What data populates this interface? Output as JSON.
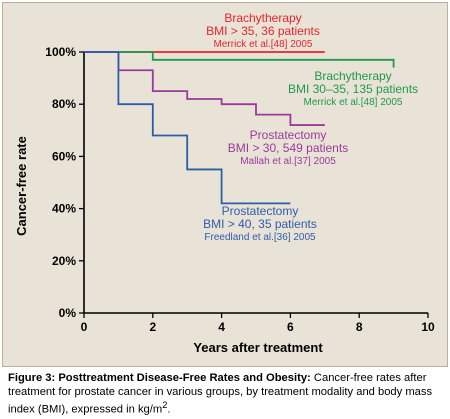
{
  "chart_data": {
    "type": "line",
    "xlabel": "Years after treatment",
    "ylabel": "Cancer-free rate",
    "xlim": [
      0,
      10
    ],
    "ylim": [
      0,
      100
    ],
    "x_ticks": [
      0,
      2,
      4,
      6,
      8,
      10
    ],
    "y_ticks": [
      0,
      20,
      40,
      60,
      80,
      100
    ],
    "y_tick_labels": [
      "0%",
      "20%",
      "40%",
      "60%",
      "80%",
      "100%"
    ],
    "grid": false,
    "line_style": "step",
    "series": [
      {
        "key": "brachy_35",
        "color": "#e8242b",
        "x": [
          0,
          7
        ],
        "y": [
          100,
          100
        ],
        "label": [
          "Brachytherapy",
          "BMI > 35, 36 patients",
          "Merrick et al.[48] 2005"
        ]
      },
      {
        "key": "brachy_30_35",
        "color": "#1f9a48",
        "x": [
          0,
          1,
          2,
          9
        ],
        "y": [
          100,
          100,
          97,
          94
        ],
        "label": [
          "Brachytherapy",
          "BMI 30–35, 135 patients",
          "Merrick et al.[48] 2005"
        ]
      },
      {
        "key": "prost_30",
        "color": "#9b3a9b",
        "x": [
          0,
          1,
          2,
          3,
          4,
          5,
          6,
          7
        ],
        "y": [
          100,
          93,
          85,
          82,
          80,
          76,
          72,
          72
        ],
        "label": [
          "Prostatectomy",
          "BMI > 30, 549 patients",
          "Mallah et al.[37] 2005"
        ]
      },
      {
        "key": "prost_40",
        "color": "#2e5da8",
        "x": [
          0,
          1,
          2,
          3,
          4,
          6
        ],
        "y": [
          100,
          80,
          68,
          55,
          42,
          42
        ],
        "label": [
          "Prostatectomy",
          "BMI > 40, 35 patients",
          "Freedland et al.[36] 2005"
        ]
      }
    ]
  },
  "caption": {
    "title": "Figure 3: Posttreatment Disease-Free Rates and Obesity:",
    "body": " Cancer-free rates after treatment for prostate cancer in various groups, by treatment modality and body mass index (BMI), expressed in kg/m",
    "superscript": "2",
    "end": "."
  }
}
